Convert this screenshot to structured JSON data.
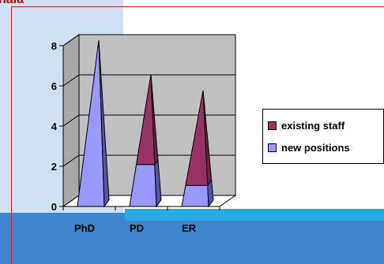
{
  "title_fragment": "nala",
  "colors": {
    "existing": "#993366",
    "existing_side": "#6b2347",
    "new": "#9999ff",
    "new_side": "#5555a8",
    "plot_bg": "#c0c0c0",
    "band": "#3f86cf",
    "band_top": "#29a9e1",
    "panel": "#cfe0f3",
    "frame": "#d9262b"
  },
  "chart_data": {
    "type": "bar",
    "shape": "cone-3d-stacked",
    "categories": [
      "PhD",
      "PD",
      "ER"
    ],
    "series": [
      {
        "name": "new positions",
        "values": [
          8,
          2,
          1
        ]
      },
      {
        "name": "existing staff",
        "values": [
          0,
          4.3,
          4.5
        ]
      }
    ],
    "ylim": [
      0,
      8
    ],
    "yticks": [
      "0",
      "2",
      "4",
      "6",
      "8"
    ],
    "grid": true,
    "legend_position": "right"
  },
  "legend": [
    {
      "label": "existing staff",
      "color_key": "existing"
    },
    {
      "label": "new positions",
      "color_key": "new"
    }
  ]
}
